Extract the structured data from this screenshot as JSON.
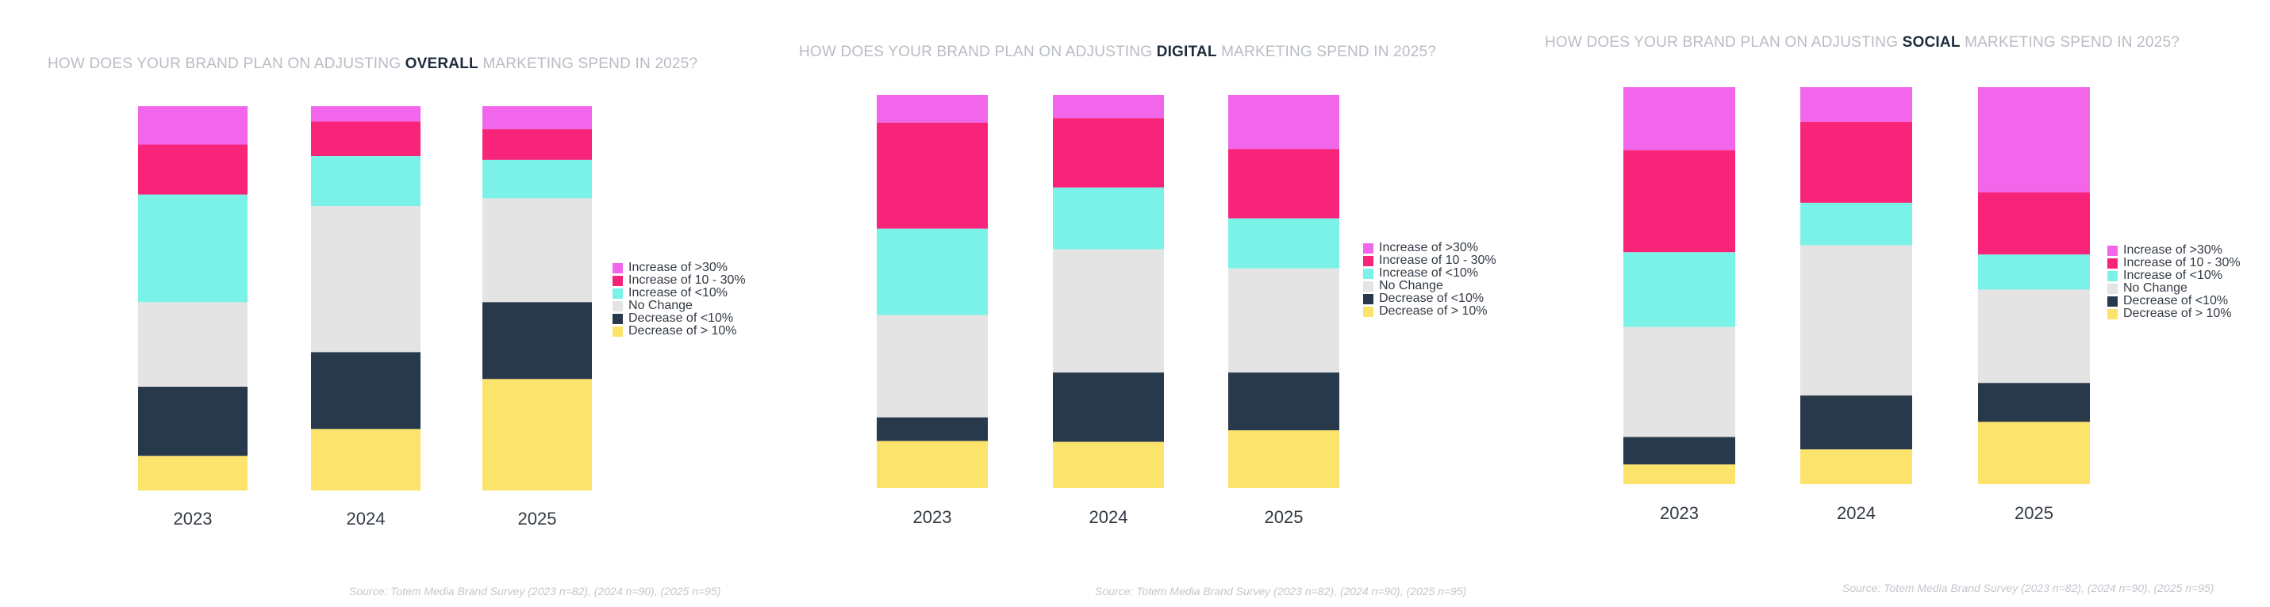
{
  "categories": [
    {
      "label": "Increase of >30%",
      "color": "#f266ec"
    },
    {
      "label": "Increase of 10 - 30%",
      "color": "#f7247a"
    },
    {
      "label": "Increase of <10%",
      "color": "#7bf2e8"
    },
    {
      "label": "No Change",
      "color": "#e4e4e4"
    },
    {
      "label": "Decrease of <10%",
      "color": "#29394c"
    },
    {
      "label": "Decrease of > 10%",
      "color": "#fbe36c"
    }
  ],
  "chart_data": [
    {
      "type": "bar",
      "stacked": true,
      "title_prefix": "HOW DOES YOUR BRAND PLAN ON ADJUSTING ",
      "title_emphasis": "OVERALL",
      "title_suffix": " MARKETING SPEND IN 2025?",
      "source": "Source: Totem Media Brand Survey (2023 n=82), (2024 n=90), (2025 n=95)",
      "categories": [
        "2023",
        "2024",
        "2025"
      ],
      "legend_position": "right",
      "series": [
        {
          "name": "Increase of >30%",
          "values": [
            10,
            4,
            6
          ]
        },
        {
          "name": "Increase of 10 - 30%",
          "values": [
            13,
            9,
            8
          ]
        },
        {
          "name": "Increase of <10%",
          "values": [
            28,
            13,
            10
          ]
        },
        {
          "name": "No Change",
          "values": [
            22,
            38,
            27
          ]
        },
        {
          "name": "Decrease of <10%",
          "values": [
            18,
            20,
            20
          ]
        },
        {
          "name": "Decrease of > 10%",
          "values": [
            9,
            16,
            29
          ]
        }
      ]
    },
    {
      "type": "bar",
      "stacked": true,
      "title_prefix": "HOW DOES YOUR BRAND PLAN ON ADJUSTING ",
      "title_emphasis": "DIGITAL",
      "title_suffix": " MARKETING SPEND IN 2025?",
      "source": "Source: Totem Media Brand Survey (2023 n=82), (2024 n=90), (2025 n=95)",
      "categories": [
        "2023",
        "2024",
        "2025"
      ],
      "legend_position": "right",
      "series": [
        {
          "name": "Increase of >30%",
          "values": [
            7,
            6,
            14
          ]
        },
        {
          "name": "Increase of 10 - 30%",
          "values": [
            27,
            18,
            18
          ]
        },
        {
          "name": "Increase of <10%",
          "values": [
            22,
            16,
            13
          ]
        },
        {
          "name": "No Change",
          "values": [
            26,
            32,
            27
          ]
        },
        {
          "name": "Decrease of <10%",
          "values": [
            6,
            18,
            15
          ]
        },
        {
          "name": "Decrease of > 10%",
          "values": [
            12,
            12,
            15
          ]
        }
      ]
    },
    {
      "type": "bar",
      "stacked": true,
      "title_prefix": "HOW DOES YOUR BRAND PLAN ON ADJUSTING ",
      "title_emphasis": "SOCIAL",
      "title_suffix": " MARKETING SPEND IN 2025?",
      "source": "Source: Totem Media Brand Survey (2023 n=82), (2024 n=90), (2025 n=95)",
      "categories": [
        "2023",
        "2024",
        "2025"
      ],
      "legend_position": "right",
      "series": [
        {
          "name": "Increase of >30%",
          "values": [
            16,
            9,
            27
          ]
        },
        {
          "name": "Increase of 10 - 30%",
          "values": [
            26,
            21,
            16
          ]
        },
        {
          "name": "Increase of <10%",
          "values": [
            19,
            11,
            9
          ]
        },
        {
          "name": "No Change",
          "values": [
            28,
            39,
            24
          ]
        },
        {
          "name": "Decrease of <10%",
          "values": [
            7,
            14,
            10
          ]
        },
        {
          "name": "Decrease of > 10%",
          "values": [
            5,
            9,
            16
          ]
        }
      ]
    }
  ]
}
